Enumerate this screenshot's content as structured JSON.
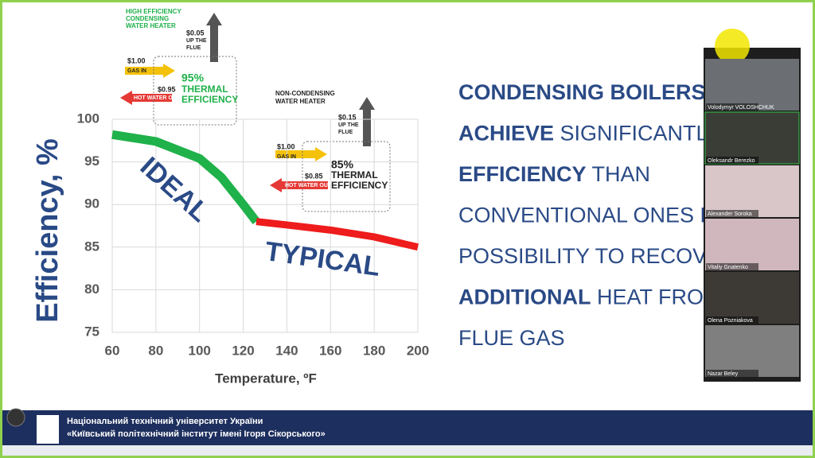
{
  "chart_data": {
    "type": "line",
    "ylabel": "Efficiency, %",
    "xlabel": "Temperature, ºF",
    "xlim": [
      60,
      200
    ],
    "xticks": [
      60,
      80,
      100,
      120,
      140,
      160,
      180,
      200
    ],
    "ylim": [
      75,
      100
    ],
    "yticks": [
      75,
      80,
      85,
      90,
      95,
      100
    ],
    "grid": true,
    "series": [
      {
        "name": "IDEAL",
        "color": "#1fb14a",
        "x": [
          60,
          80,
          100,
          110,
          120,
          126
        ],
        "values": [
          98.2,
          97.4,
          95.4,
          93.2,
          90,
          88
        ]
      },
      {
        "name": "TYPICAL",
        "color": "#ee1c1c",
        "x": [
          126,
          140,
          160,
          180,
          200
        ],
        "values": [
          88,
          87.6,
          87,
          86.2,
          85
        ]
      }
    ],
    "annotations": [
      "HIGH EFFICIENCY",
      "CONDENSING",
      "WATER HEATER",
      "$0.05",
      "UP THE",
      "FLUE",
      "$1.00",
      "GAS IN",
      "$0.95",
      "HOT WATER OUT",
      "95%",
      "THERMAL",
      "EFFICIENCY",
      "NON-CONDENSING",
      "WATER HEATER",
      "$0.15",
      "UP THE",
      "FLUE",
      "$1.00",
      "GAS IN",
      "$0.85",
      "HOT WATER OUT",
      "85%",
      "THERMAL",
      "EFFICIENCY"
    ]
  },
  "slide_text": [
    [
      {
        "text": "CONDENSING BOILERS C",
        "bold": true
      }
    ],
    [
      {
        "text": "ACHIEVE",
        "bold": true
      },
      {
        "text": " SIGNIFICANTLY",
        "bold": false
      }
    ],
    [
      {
        "text": "EFFICIENCY",
        "bold": true
      },
      {
        "text": " THAN",
        "bold": false
      }
    ],
    [
      {
        "text": "CONVENTIONAL ONES D",
        "bold": false
      }
    ],
    [
      {
        "text": "POSSIBILITY TO RECOVE",
        "bold": false
      }
    ],
    [
      {
        "text": "ADDITIONAL",
        "bold": true
      },
      {
        "text": " HEAT FROM",
        "bold": false
      }
    ],
    [
      {
        "text": "FLUE GAS",
        "bold": false
      }
    ]
  ],
  "participants": [
    "Volodymyr VOLOSHCHUK",
    "Oleksandr Berezko",
    "Alexander Soroka",
    "Vitaliy Gnatenko",
    "Olena Pozniakova",
    "Nazar Beley"
  ],
  "footer": {
    "line1": "Національний технічний університет України",
    "line2": "«Київський політехнічний інститут імені Ігоря Сікорського»"
  }
}
